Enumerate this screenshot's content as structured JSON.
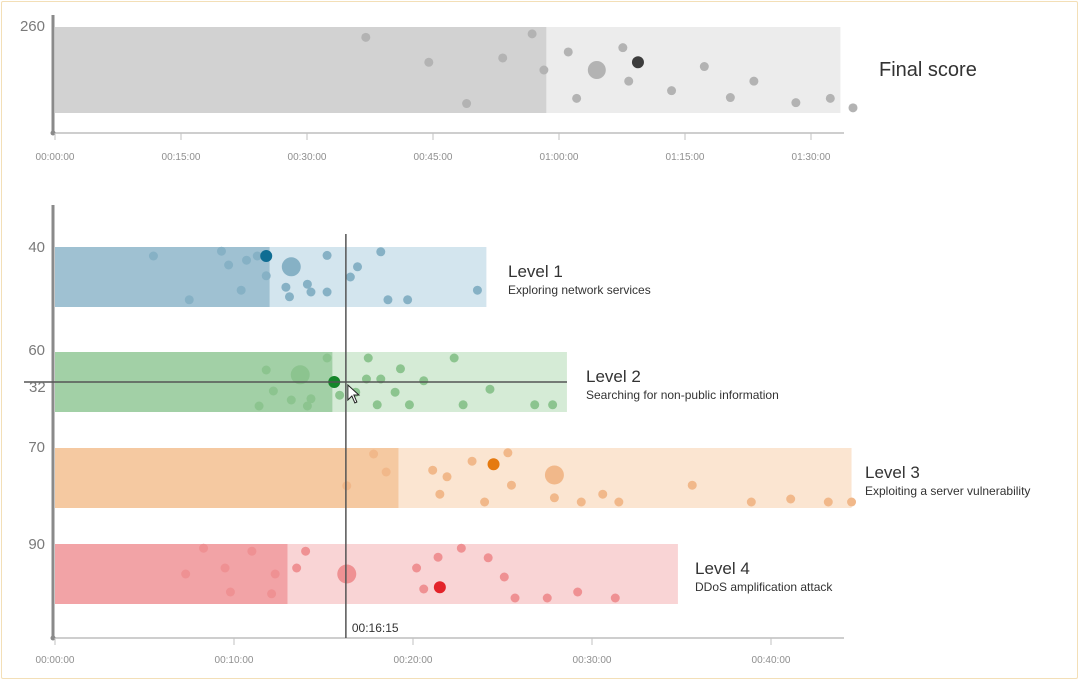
{
  "chart_data": [
    {
      "type": "scatter",
      "title": "Final score",
      "xlabel": "",
      "ylabel": "",
      "x_ticks": [
        "00:00:00",
        "00:15:00",
        "00:30:00",
        "00:45:00",
        "01:00:00",
        "01:15:00",
        "01:30:00"
      ],
      "y_label": "260",
      "xlim_minutes": [
        0,
        93.5
      ],
      "bar": {
        "solved_until_minutes": 58.5,
        "end_minutes": 93.5
      },
      "colors": {
        "solved": "#d2d2d2",
        "remaining": "#ececec",
        "dot": "#b3b3b3",
        "dot_dark": "#3c3c3c"
      },
      "points": [
        {
          "t": 37,
          "r": 0.88
        },
        {
          "t": 44.5,
          "r": 0.59
        },
        {
          "t": 49,
          "r": 0.11
        },
        {
          "t": 53.3,
          "r": 0.64
        },
        {
          "t": 56.8,
          "r": 0.92
        },
        {
          "t": 58.2,
          "r": 0.5
        },
        {
          "t": 61.1,
          "r": 0.71
        },
        {
          "t": 62.1,
          "r": 0.17
        },
        {
          "t": 64.5,
          "r": 0.5,
          "size": "large"
        },
        {
          "t": 67.6,
          "r": 0.76
        },
        {
          "t": 68.3,
          "r": 0.37
        },
        {
          "t": 69.4,
          "r": 0.59,
          "highlight": true
        },
        {
          "t": 73.4,
          "r": 0.26
        },
        {
          "t": 77.3,
          "r": 0.54
        },
        {
          "t": 80.4,
          "r": 0.18
        },
        {
          "t": 83.2,
          "r": 0.37
        },
        {
          "t": 88.2,
          "r": 0.12
        },
        {
          "t": 92.3,
          "r": 0.17
        },
        {
          "t": 95.0,
          "r": 0.06
        }
      ]
    },
    {
      "type": "scatter",
      "title": "",
      "xlabel": "",
      "ylabel": "",
      "x_ticks": [
        "00:00:00",
        "00:10:00",
        "00:20:00",
        "00:30:00",
        "00:40:00"
      ],
      "xlim_minutes": [
        0,
        44.5
      ],
      "cursor": {
        "time": "00:16:15",
        "time_minutes": 16.25,
        "value_label": "32",
        "row_ratio": 0.5
      },
      "series": [
        {
          "name": "Level 1",
          "subtitle": "Exploring network services",
          "y_label": "40",
          "solved_until_minutes": 12,
          "end_minutes": 24.1,
          "color_solved": "#9fc1d2",
          "color_remaining": "#d3e5ee",
          "color_dot": "#86b1c5",
          "color_dot_dark": "#0f6d93",
          "points": [
            {
              "t": 5.5,
              "r": 0.85
            },
            {
              "t": 9.3,
              "r": 0.93
            },
            {
              "t": 9.7,
              "r": 0.7
            },
            {
              "t": 10.7,
              "r": 0.78
            },
            {
              "t": 11.3,
              "r": 0.85
            },
            {
              "t": 11.8,
              "r": 0.85,
              "highlight": true
            },
            {
              "t": 11.8,
              "r": 0.52
            },
            {
              "t": 10.4,
              "r": 0.28
            },
            {
              "t": 7.5,
              "r": 0.12
            },
            {
              "t": 13.2,
              "r": 0.67,
              "size": "large"
            },
            {
              "t": 12.9,
              "r": 0.33
            },
            {
              "t": 13.1,
              "r": 0.17
            },
            {
              "t": 14.1,
              "r": 0.38
            },
            {
              "t": 14.3,
              "r": 0.25
            },
            {
              "t": 15.2,
              "r": 0.25
            },
            {
              "t": 15.2,
              "r": 0.86
            },
            {
              "t": 16.5,
              "r": 0.5
            },
            {
              "t": 16.9,
              "r": 0.67
            },
            {
              "t": 18.2,
              "r": 0.92
            },
            {
              "t": 18.6,
              "r": 0.12
            },
            {
              "t": 19.7,
              "r": 0.12
            },
            {
              "t": 23.6,
              "r": 0.28
            }
          ]
        },
        {
          "name": "Level 2",
          "subtitle": "Searching for non-public information",
          "y_label": "60",
          "solved_until_minutes": 15.5,
          "end_minutes": 28.6,
          "color_solved": "#a2d0a6",
          "color_remaining": "#d5ebd6",
          "color_dot": "#8cc48f",
          "color_dot_dark": "#15852a",
          "points": [
            {
              "t": 11.4,
              "r": 0.1
            },
            {
              "t": 11.8,
              "r": 0.7
            },
            {
              "t": 12.2,
              "r": 0.35
            },
            {
              "t": 13.2,
              "r": 0.2
            },
            {
              "t": 13.7,
              "r": 0.62,
              "size": "large"
            },
            {
              "t": 14.1,
              "r": 0.1
            },
            {
              "t": 14.3,
              "r": 0.22
            },
            {
              "t": 15.2,
              "r": 0.9
            },
            {
              "t": 15.6,
              "r": 0.5,
              "highlight": true
            },
            {
              "t": 15.9,
              "r": 0.28
            },
            {
              "t": 16.8,
              "r": 0.33
            },
            {
              "t": 17.4,
              "r": 0.55
            },
            {
              "t": 17.5,
              "r": 0.9
            },
            {
              "t": 18.2,
              "r": 0.55
            },
            {
              "t": 18.0,
              "r": 0.12
            },
            {
              "t": 19.0,
              "r": 0.33
            },
            {
              "t": 19.3,
              "r": 0.72
            },
            {
              "t": 19.8,
              "r": 0.12
            },
            {
              "t": 20.6,
              "r": 0.52
            },
            {
              "t": 22.3,
              "r": 0.9
            },
            {
              "t": 22.8,
              "r": 0.12
            },
            {
              "t": 24.3,
              "r": 0.38
            },
            {
              "t": 26.8,
              "r": 0.12
            },
            {
              "t": 27.8,
              "r": 0.12
            }
          ]
        },
        {
          "name": "Level 3",
          "subtitle": "Exploiting a server vulnerability",
          "y_label": "70",
          "solved_until_minutes": 19.2,
          "end_minutes": 44.5,
          "color_solved": "#f5c9a1",
          "color_remaining": "#fbe5d1",
          "color_dot": "#f1b88a",
          "color_dot_dark": "#e57a10",
          "points": [
            {
              "t": 16.3,
              "r": 0.37
            },
            {
              "t": 17.8,
              "r": 0.9
            },
            {
              "t": 18.5,
              "r": 0.6
            },
            {
              "t": 21.1,
              "r": 0.63
            },
            {
              "t": 21.5,
              "r": 0.23
            },
            {
              "t": 21.9,
              "r": 0.52
            },
            {
              "t": 23.3,
              "r": 0.78
            },
            {
              "t": 24.0,
              "r": 0.1
            },
            {
              "t": 24.5,
              "r": 0.73,
              "highlight": true
            },
            {
              "t": 25.3,
              "r": 0.92
            },
            {
              "t": 25.5,
              "r": 0.38
            },
            {
              "t": 27.9,
              "r": 0.55,
              "size": "large"
            },
            {
              "t": 27.9,
              "r": 0.17
            },
            {
              "t": 29.4,
              "r": 0.1
            },
            {
              "t": 30.6,
              "r": 0.23
            },
            {
              "t": 31.5,
              "r": 0.1
            },
            {
              "t": 35.6,
              "r": 0.38
            },
            {
              "t": 38.9,
              "r": 0.1
            },
            {
              "t": 41.1,
              "r": 0.15
            },
            {
              "t": 43.2,
              "r": 0.1
            },
            {
              "t": 44.5,
              "r": 0.1
            }
          ]
        },
        {
          "name": "Level 4",
          "subtitle": "DDoS amplification attack",
          "y_label": "90",
          "solved_until_minutes": 13,
          "end_minutes": 34.8,
          "color_solved": "#f2a3a6",
          "color_remaining": "#f9d4d5",
          "color_dot": "#ef9193",
          "color_dot_dark": "#e3232a",
          "points": [
            {
              "t": 7.3,
              "r": 0.5
            },
            {
              "t": 8.3,
              "r": 0.93
            },
            {
              "t": 9.5,
              "r": 0.6
            },
            {
              "t": 9.8,
              "r": 0.2
            },
            {
              "t": 11.0,
              "r": 0.88
            },
            {
              "t": 12.3,
              "r": 0.5
            },
            {
              "t": 12.1,
              "r": 0.17
            },
            {
              "t": 13.5,
              "r": 0.6
            },
            {
              "t": 14.0,
              "r": 0.88
            },
            {
              "t": 16.3,
              "r": 0.5,
              "size": "large"
            },
            {
              "t": 20.2,
              "r": 0.6
            },
            {
              "t": 20.6,
              "r": 0.25
            },
            {
              "t": 21.4,
              "r": 0.78
            },
            {
              "t": 21.5,
              "r": 0.28,
              "highlight": true
            },
            {
              "t": 22.7,
              "r": 0.93
            },
            {
              "t": 24.2,
              "r": 0.77
            },
            {
              "t": 25.1,
              "r": 0.45
            },
            {
              "t": 25.7,
              "r": 0.1
            },
            {
              "t": 27.5,
              "r": 0.1
            },
            {
              "t": 29.2,
              "r": 0.2
            },
            {
              "t": 31.3,
              "r": 0.1
            }
          ]
        }
      ]
    }
  ]
}
